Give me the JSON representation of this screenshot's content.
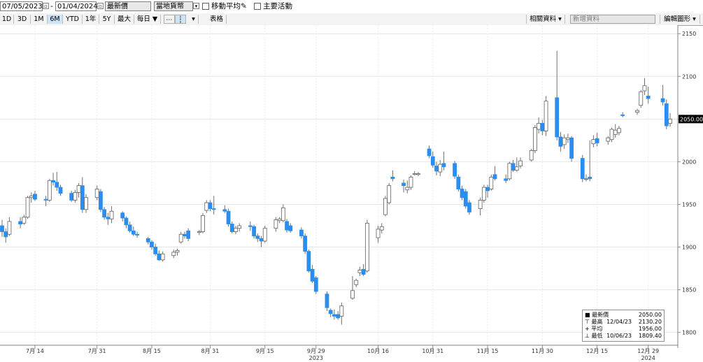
{
  "toolbar": {
    "start_date": "07/05/2023",
    "end_date": "01/04/2024",
    "price_type": "最新價",
    "currency": "當地貨幣",
    "moving_average_label": "移動平均",
    "key_events_label": "主要活動",
    "periods": [
      "1D",
      "3D",
      "1M",
      "6M",
      "YTD",
      "1年",
      "5Y",
      "最大"
    ],
    "active_period": "6M",
    "frequency": "每日 ▼",
    "chart_style": "表格",
    "related_data": "相關資料",
    "add_data_placeholder": "新增資料",
    "edit_chart": "編輯圖形"
  },
  "legend": {
    "last": {
      "label": "最新價",
      "date": "",
      "value": "2050.00"
    },
    "high": {
      "label": "最高",
      "date": "12/04/23",
      "value": "2130.20"
    },
    "avg": {
      "label": "平均",
      "date": "",
      "value": "1956.00"
    },
    "low": {
      "label": "最低",
      "date": "10/06/23",
      "value": "1809.40"
    }
  },
  "chart_data": {
    "type": "candlestick",
    "y_axis_side": "right",
    "ylim": [
      1785,
      2160
    ],
    "yticks": [
      1800,
      1850,
      1900,
      1950,
      2000,
      2050,
      2100,
      2150
    ],
    "last_price_marker": "2050.00",
    "x_range": [
      "2023-07-05",
      "2024-01-04"
    ],
    "grid": true,
    "colors": {
      "up": "#ffffff",
      "down": "#2a8ef0",
      "wick": "#707070",
      "outline": "#606060"
    },
    "xticks": [
      {
        "date": "2023-07-14",
        "label": "7月 14"
      },
      {
        "date": "2023-07-31",
        "label": "7月 31"
      },
      {
        "date": "2023-08-15",
        "label": "8月 15"
      },
      {
        "date": "2023-08-31",
        "label": "8月 31"
      },
      {
        "date": "2023-09-15",
        "label": "9月 15"
      },
      {
        "date": "2023-09-29",
        "label": "9月 29"
      },
      {
        "date": "2023-10-16",
        "label": "10月 16"
      },
      {
        "date": "2023-10-31",
        "label": "10月 31"
      },
      {
        "date": "2023-11-15",
        "label": "11月 15"
      },
      {
        "date": "2023-11-30",
        "label": "11月 30"
      },
      {
        "date": "2023-12-15",
        "label": "12月 15"
      },
      {
        "date": "2023-12-29",
        "label": "12月 29"
      }
    ],
    "year_labels": [
      {
        "date": "2023-09-29",
        "label": "2023"
      },
      {
        "date": "2023-12-29",
        "label": "2024"
      }
    ],
    "candles": [
      {
        "date": "2023-07-05",
        "open": 1925,
        "high": 1932,
        "low": 1912,
        "close": 1918
      },
      {
        "date": "2023-07-06",
        "open": 1918,
        "high": 1922,
        "low": 1905,
        "close": 1912
      },
      {
        "date": "2023-07-07",
        "open": 1915,
        "high": 1935,
        "low": 1913,
        "close": 1930
      },
      {
        "date": "2023-07-10",
        "open": 1930,
        "high": 1935,
        "low": 1922,
        "close": 1927
      },
      {
        "date": "2023-07-11",
        "open": 1928,
        "high": 1938,
        "low": 1926,
        "close": 1935
      },
      {
        "date": "2023-07-12",
        "open": 1935,
        "high": 1960,
        "low": 1933,
        "close": 1958
      },
      {
        "date": "2023-07-13",
        "open": 1958,
        "high": 1964,
        "low": 1952,
        "close": 1960
      },
      {
        "date": "2023-07-14",
        "open": 1962,
        "high": 1966,
        "low": 1954,
        "close": 1956
      },
      {
        "date": "2023-07-17",
        "open": 1956,
        "high": 1960,
        "low": 1948,
        "close": 1955
      },
      {
        "date": "2023-07-18",
        "open": 1955,
        "high": 1980,
        "low": 1953,
        "close": 1978
      },
      {
        "date": "2023-07-19",
        "open": 1978,
        "high": 1987,
        "low": 1972,
        "close": 1976
      },
      {
        "date": "2023-07-20",
        "open": 1976,
        "high": 1988,
        "low": 1966,
        "close": 1970
      },
      {
        "date": "2023-07-21",
        "open": 1970,
        "high": 1973,
        "low": 1960,
        "close": 1963
      },
      {
        "date": "2023-07-24",
        "open": 1963,
        "high": 1966,
        "low": 1953,
        "close": 1955
      },
      {
        "date": "2023-07-25",
        "open": 1955,
        "high": 1967,
        "low": 1952,
        "close": 1964
      },
      {
        "date": "2023-07-26",
        "open": 1964,
        "high": 1975,
        "low": 1958,
        "close": 1972
      },
      {
        "date": "2023-07-27",
        "open": 1972,
        "high": 1982,
        "low": 1940,
        "close": 1944
      },
      {
        "date": "2023-07-28",
        "open": 1944,
        "high": 1962,
        "low": 1940,
        "close": 1958
      },
      {
        "date": "2023-07-31",
        "open": 1958,
        "high": 1972,
        "low": 1955,
        "close": 1968
      },
      {
        "date": "2023-08-01",
        "open": 1965,
        "high": 1968,
        "low": 1941,
        "close": 1944
      },
      {
        "date": "2023-08-02",
        "open": 1944,
        "high": 1947,
        "low": 1932,
        "close": 1935
      },
      {
        "date": "2023-08-03",
        "open": 1935,
        "high": 1940,
        "low": 1926,
        "close": 1933
      },
      {
        "date": "2023-08-04",
        "open": 1933,
        "high": 1948,
        "low": 1928,
        "close": 1942
      },
      {
        "date": "2023-08-07",
        "open": 1940,
        "high": 1942,
        "low": 1930,
        "close": 1934
      },
      {
        "date": "2023-08-08",
        "open": 1934,
        "high": 1936,
        "low": 1922,
        "close": 1926
      },
      {
        "date": "2023-08-09",
        "open": 1926,
        "high": 1930,
        "low": 1917,
        "close": 1919
      },
      {
        "date": "2023-08-10",
        "open": 1919,
        "high": 1924,
        "low": 1913,
        "close": 1915
      },
      {
        "date": "2023-08-11",
        "open": 1915,
        "high": 1918,
        "low": 1911,
        "close": 1914
      },
      {
        "date": "2023-08-14",
        "open": 1910,
        "high": 1912,
        "low": 1903,
        "close": 1906
      },
      {
        "date": "2023-08-15",
        "open": 1906,
        "high": 1908,
        "low": 1897,
        "close": 1900
      },
      {
        "date": "2023-08-16",
        "open": 1900,
        "high": 1904,
        "low": 1890,
        "close": 1892
      },
      {
        "date": "2023-08-17",
        "open": 1892,
        "high": 1896,
        "low": 1884,
        "close": 1885
      },
      {
        "date": "2023-08-18",
        "open": 1885,
        "high": 1895,
        "low": 1883,
        "close": 1892
      },
      {
        "date": "2023-08-21",
        "open": 1890,
        "high": 1897,
        "low": 1887,
        "close": 1894
      },
      {
        "date": "2023-08-22",
        "open": 1894,
        "high": 1898,
        "low": 1890,
        "close": 1896
      },
      {
        "date": "2023-08-23",
        "open": 1906,
        "high": 1918,
        "low": 1904,
        "close": 1915
      },
      {
        "date": "2023-08-24",
        "open": 1915,
        "high": 1918,
        "low": 1910,
        "close": 1913
      },
      {
        "date": "2023-08-25",
        "open": 1919,
        "high": 1922,
        "low": 1907,
        "close": 1910
      },
      {
        "date": "2023-08-28",
        "open": 1917,
        "high": 1920,
        "low": 1914,
        "close": 1918
      },
      {
        "date": "2023-08-29",
        "open": 1918,
        "high": 1940,
        "low": 1916,
        "close": 1937
      },
      {
        "date": "2023-08-30",
        "open": 1943,
        "high": 1955,
        "low": 1940,
        "close": 1952
      },
      {
        "date": "2023-08-31",
        "open": 1952,
        "high": 1955,
        "low": 1942,
        "close": 1945
      },
      {
        "date": "2023-09-01",
        "open": 1945,
        "high": 1960,
        "low": 1938,
        "close": 1944
      },
      {
        "date": "2023-09-04",
        "open": 1944,
        "high": 1949,
        "low": 1940,
        "close": 1942
      },
      {
        "date": "2023-09-05",
        "open": 1942,
        "high": 1945,
        "low": 1924,
        "close": 1927
      },
      {
        "date": "2023-09-06",
        "open": 1927,
        "high": 1930,
        "low": 1916,
        "close": 1918
      },
      {
        "date": "2023-09-07",
        "open": 1918,
        "high": 1925,
        "low": 1915,
        "close": 1922
      },
      {
        "date": "2023-09-08",
        "open": 1922,
        "high": 1928,
        "low": 1918,
        "close": 1925
      },
      {
        "date": "2023-09-11",
        "open": 1925,
        "high": 1930,
        "low": 1919,
        "close": 1924
      },
      {
        "date": "2023-09-12",
        "open": 1924,
        "high": 1926,
        "low": 1910,
        "close": 1913
      },
      {
        "date": "2023-09-13",
        "open": 1913,
        "high": 1916,
        "low": 1906,
        "close": 1910
      },
      {
        "date": "2023-09-14",
        "open": 1910,
        "high": 1913,
        "low": 1900,
        "close": 1907
      },
      {
        "date": "2023-09-15",
        "open": 1907,
        "high": 1925,
        "low": 1905,
        "close": 1922
      },
      {
        "date": "2023-09-18",
        "open": 1922,
        "high": 1935,
        "low": 1918,
        "close": 1932
      },
      {
        "date": "2023-09-19",
        "open": 1931,
        "high": 1935,
        "low": 1928,
        "close": 1933
      },
      {
        "date": "2023-09-20",
        "open": 1931,
        "high": 1950,
        "low": 1929,
        "close": 1946
      },
      {
        "date": "2023-09-21",
        "open": 1930,
        "high": 1933,
        "low": 1917,
        "close": 1920
      },
      {
        "date": "2023-09-22",
        "open": 1925,
        "high": 1928,
        "low": 1917,
        "close": 1919
      },
      {
        "date": "2023-09-25",
        "open": 1920,
        "high": 1923,
        "low": 1910,
        "close": 1913
      },
      {
        "date": "2023-09-26",
        "open": 1913,
        "high": 1916,
        "low": 1892,
        "close": 1895
      },
      {
        "date": "2023-09-27",
        "open": 1895,
        "high": 1897,
        "low": 1870,
        "close": 1872
      },
      {
        "date": "2023-09-28",
        "open": 1874,
        "high": 1879,
        "low": 1858,
        "close": 1860
      },
      {
        "date": "2023-09-29",
        "open": 1864,
        "high": 1866,
        "low": 1845,
        "close": 1848
      },
      {
        "date": "2023-10-02",
        "open": 1845,
        "high": 1848,
        "low": 1825,
        "close": 1829
      },
      {
        "date": "2023-10-03",
        "open": 1826,
        "high": 1828,
        "low": 1818,
        "close": 1822
      },
      {
        "date": "2023-10-04",
        "open": 1821,
        "high": 1827,
        "low": 1815,
        "close": 1819
      },
      {
        "date": "2023-10-05",
        "open": 1821,
        "high": 1825,
        "low": 1815,
        "close": 1817
      },
      {
        "date": "2023-10-06",
        "open": 1819,
        "high": 1835,
        "low": 1809,
        "close": 1831
      },
      {
        "date": "2023-10-09",
        "open": 1840,
        "high": 1866,
        "low": 1838,
        "close": 1849
      },
      {
        "date": "2023-10-10",
        "open": 1856,
        "high": 1863,
        "low": 1853,
        "close": 1861
      },
      {
        "date": "2023-10-11",
        "open": 1870,
        "high": 1877,
        "low": 1866,
        "close": 1873
      },
      {
        "date": "2023-10-12",
        "open": 1874,
        "high": 1880,
        "low": 1866,
        "close": 1868
      },
      {
        "date": "2023-10-13",
        "open": 1872,
        "high": 1932,
        "low": 1870,
        "close": 1928
      },
      {
        "date": "2023-10-16",
        "open": 1911,
        "high": 1925,
        "low": 1905,
        "close": 1921
      },
      {
        "date": "2023-10-17",
        "open": 1920,
        "high": 1928,
        "low": 1916,
        "close": 1924
      },
      {
        "date": "2023-10-18",
        "open": 1938,
        "high": 1960,
        "low": 1936,
        "close": 1957
      },
      {
        "date": "2023-10-19",
        "open": 1952,
        "high": 1975,
        "low": 1950,
        "close": 1972
      },
      {
        "date": "2023-10-20",
        "open": 1982,
        "high": 1990,
        "low": 1977,
        "close": 1980
      },
      {
        "date": "2023-10-23",
        "open": 1975,
        "high": 1979,
        "low": 1964,
        "close": 1972
      },
      {
        "date": "2023-10-24",
        "open": 1967,
        "high": 1978,
        "low": 1963,
        "close": 1970
      },
      {
        "date": "2023-10-25",
        "open": 1970,
        "high": 1984,
        "low": 1967,
        "close": 1982
      },
      {
        "date": "2023-10-26",
        "open": 1985,
        "high": 1989,
        "low": 1984,
        "close": 1986
      },
      {
        "date": "2023-10-27",
        "open": 1985,
        "high": 1988,
        "low": 1983,
        "close": 1986
      },
      {
        "date": "2023-10-30",
        "open": 2015,
        "high": 2019,
        "low": 2004,
        "close": 2007
      },
      {
        "date": "2023-10-31",
        "open": 2006,
        "high": 2012,
        "low": 1993,
        "close": 1996
      },
      {
        "date": "2023-11-01",
        "open": 1995,
        "high": 2000,
        "low": 1984,
        "close": 1989
      },
      {
        "date": "2023-11-02",
        "open": 1988,
        "high": 2002,
        "low": 1983,
        "close": 1997
      },
      {
        "date": "2023-11-03",
        "open": 1998,
        "high": 2012,
        "low": 1990,
        "close": 1994
      },
      {
        "date": "2023-11-06",
        "open": 1998,
        "high": 2001,
        "low": 1980,
        "close": 1983
      },
      {
        "date": "2023-11-07",
        "open": 1982,
        "high": 1985,
        "low": 1965,
        "close": 1968
      },
      {
        "date": "2023-11-08",
        "open": 1968,
        "high": 1972,
        "low": 1955,
        "close": 1958
      },
      {
        "date": "2023-11-09",
        "open": 1965,
        "high": 1968,
        "low": 1945,
        "close": 1948
      },
      {
        "date": "2023-11-10",
        "open": 1952,
        "high": 1955,
        "low": 1938,
        "close": 1941
      },
      {
        "date": "2023-11-13",
        "open": 1945,
        "high": 1958,
        "low": 1937,
        "close": 1955
      },
      {
        "date": "2023-11-14",
        "open": 1955,
        "high": 1973,
        "low": 1952,
        "close": 1970
      },
      {
        "date": "2023-11-15",
        "open": 1970,
        "high": 1973,
        "low": 1958,
        "close": 1966
      },
      {
        "date": "2023-11-16",
        "open": 1968,
        "high": 1985,
        "low": 1966,
        "close": 1982
      },
      {
        "date": "2023-11-17",
        "open": 1985,
        "high": 1995,
        "low": 1978,
        "close": 1980
      },
      {
        "date": "2023-11-20",
        "open": 1980,
        "high": 1985,
        "low": 1975,
        "close": 1978
      },
      {
        "date": "2023-11-21",
        "open": 1980,
        "high": 2000,
        "low": 1978,
        "close": 1998
      },
      {
        "date": "2023-11-22",
        "open": 1998,
        "high": 2002,
        "low": 1988,
        "close": 1990
      },
      {
        "date": "2023-11-23",
        "open": 1990,
        "high": 2005,
        "low": 1988,
        "close": 1994
      },
      {
        "date": "2023-11-24",
        "open": 1995,
        "high": 2005,
        "low": 1992,
        "close": 2001
      },
      {
        "date": "2023-11-27",
        "open": 2002,
        "high": 2015,
        "low": 2000,
        "close": 2013
      },
      {
        "date": "2023-11-28",
        "open": 2013,
        "high": 2043,
        "low": 2010,
        "close": 2040
      },
      {
        "date": "2023-11-29",
        "open": 2038,
        "high": 2052,
        "low": 2033,
        "close": 2045
      },
      {
        "date": "2023-11-30",
        "open": 2045,
        "high": 2049,
        "low": 2031,
        "close": 2036
      },
      {
        "date": "2023-12-01",
        "open": 2036,
        "high": 2077,
        "low": 2030,
        "close": 2071
      },
      {
        "date": "2023-12-04",
        "open": 2075,
        "high": 2130,
        "low": 2025,
        "close": 2029
      },
      {
        "date": "2023-12-05",
        "open": 2029,
        "high": 2035,
        "low": 2012,
        "close": 2018
      },
      {
        "date": "2023-12-06",
        "open": 2020,
        "high": 2032,
        "low": 2015,
        "close": 2028
      },
      {
        "date": "2023-12-07",
        "open": 2026,
        "high": 2033,
        "low": 2022,
        "close": 2028
      },
      {
        "date": "2023-12-08",
        "open": 2028,
        "high": 2030,
        "low": 2000,
        "close": 2004
      },
      {
        "date": "2023-12-11",
        "open": 2004,
        "high": 2008,
        "low": 1976,
        "close": 1980
      },
      {
        "date": "2023-12-12",
        "open": 1980,
        "high": 1985,
        "low": 1977,
        "close": 1980
      },
      {
        "date": "2023-12-13",
        "open": 1982,
        "high": 2025,
        "low": 1977,
        "close": 1980
      },
      {
        "date": "2023-12-14",
        "open": 2021,
        "high": 2031,
        "low": 2017,
        "close": 2026
      },
      {
        "date": "2023-12-15",
        "open": 2027,
        "high": 2034,
        "low": 2018,
        "close": 2022
      },
      {
        "date": "2023-12-18",
        "open": 2024,
        "high": 2030,
        "low": 2020,
        "close": 2028
      },
      {
        "date": "2023-12-19",
        "open": 2026,
        "high": 2040,
        "low": 2023,
        "close": 2038
      },
      {
        "date": "2023-12-20",
        "open": 2032,
        "high": 2044,
        "low": 2028,
        "close": 2037
      },
      {
        "date": "2023-12-21",
        "open": 2034,
        "high": 2042,
        "low": 2031,
        "close": 2039
      },
      {
        "date": "2023-12-22",
        "open": 2055,
        "high": 2058,
        "low": 2052,
        "close": 2054
      },
      {
        "date": "2023-12-26",
        "open": 2058,
        "high": 2062,
        "low": 2055,
        "close": 2060
      },
      {
        "date": "2023-12-27",
        "open": 2066,
        "high": 2084,
        "low": 2063,
        "close": 2082
      },
      {
        "date": "2023-12-28",
        "open": 2083,
        "high": 2098,
        "low": 2078,
        "close": 2089
      },
      {
        "date": "2023-12-29",
        "open": 2077,
        "high": 2088,
        "low": 2068,
        "close": 2074
      },
      {
        "date": "2024-01-02",
        "open": 2074,
        "high": 2090,
        "low": 2066,
        "close": 2070
      },
      {
        "date": "2024-01-03",
        "open": 2068,
        "high": 2073,
        "low": 2038,
        "close": 2042
      },
      {
        "date": "2024-01-04",
        "open": 2045,
        "high": 2057,
        "low": 2041,
        "close": 2050
      }
    ]
  }
}
